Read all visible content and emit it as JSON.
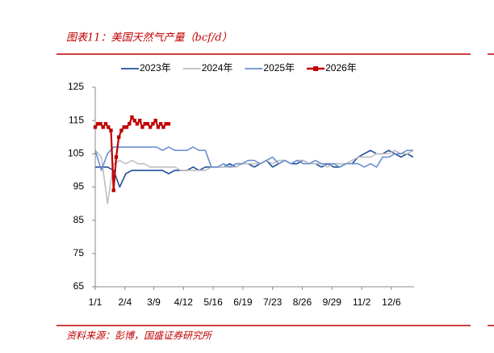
{
  "chart_data": {
    "type": "line",
    "title": "图表11：美国天然气产量（bcf/d）",
    "source": "资料来源：彭博，国盛证券研究所",
    "x": [
      0,
      7,
      14,
      21,
      28,
      35,
      42,
      49,
      56,
      63,
      70,
      77,
      84,
      91,
      98,
      105,
      112,
      119,
      126,
      133,
      140,
      147,
      154,
      161,
      168,
      175,
      182,
      189,
      196,
      203,
      210,
      217,
      224,
      231,
      238,
      245,
      252,
      259,
      266,
      273,
      280,
      287,
      294,
      301,
      308,
      315,
      322,
      329,
      336,
      343,
      350,
      357,
      364
    ],
    "xlim": [
      0,
      365
    ],
    "xticks": [
      {
        "value": 0,
        "label": "1/1"
      },
      {
        "value": 34,
        "label": "2/4"
      },
      {
        "value": 67,
        "label": "3/9"
      },
      {
        "value": 101,
        "label": "4/12"
      },
      {
        "value": 135,
        "label": "5/16"
      },
      {
        "value": 169,
        "label": "6/19"
      },
      {
        "value": 203,
        "label": "7/23"
      },
      {
        "value": 237,
        "label": "8/26"
      },
      {
        "value": 271,
        "label": "9/29"
      },
      {
        "value": 305,
        "label": "11/2"
      },
      {
        "value": 339,
        "label": "12/6"
      }
    ],
    "ylim": [
      65,
      125
    ],
    "yticks": [
      65,
      75,
      85,
      95,
      105,
      115,
      125
    ],
    "grid": false,
    "legend": "top",
    "series": [
      {
        "name": "2023年",
        "color": "#1f4e99",
        "values": [
          101,
          101,
          101,
          100,
          95,
          99,
          100,
          100,
          100,
          100,
          100,
          100,
          99,
          100,
          100,
          100,
          101,
          100,
          101,
          101,
          101,
          101,
          102,
          101,
          102,
          102,
          101,
          102,
          103,
          101,
          102,
          103,
          102,
          102,
          103,
          102,
          102,
          101,
          102,
          101,
          101,
          102,
          102,
          104,
          105,
          106,
          105,
          105,
          106,
          105,
          104,
          105,
          104
        ]
      },
      {
        "name": "2024年",
        "color": "#bfbfbf",
        "values": [
          106,
          104,
          90,
          102,
          103,
          102,
          103,
          102,
          102,
          101,
          101,
          101,
          101,
          101,
          100,
          100,
          100,
          100,
          100,
          101,
          101,
          101,
          101,
          101,
          102,
          102,
          102,
          102,
          103,
          102,
          103,
          103,
          102,
          103,
          103,
          102,
          102,
          102,
          101,
          102,
          102,
          102,
          103,
          104,
          104,
          104,
          105,
          105,
          105,
          106,
          105,
          105,
          106
        ]
      },
      {
        "name": "2025年",
        "color": "#6b8fd0",
        "values": [
          106,
          100,
          105,
          107,
          107,
          107,
          107,
          107,
          107,
          107,
          107,
          106,
          107,
          106,
          106,
          106,
          107,
          106,
          106,
          101,
          101,
          102,
          101,
          102,
          102,
          103,
          103,
          102,
          103,
          104,
          102,
          103,
          102,
          103,
          102,
          102,
          103,
          102,
          102,
          102,
          101,
          102,
          102,
          102,
          101,
          102,
          101,
          104,
          104,
          105,
          105,
          106,
          106
        ]
      },
      {
        "name": "2026年",
        "color": "#c00000",
        "marker": "square",
        "x": [
          0,
          3,
          6,
          9,
          12,
          15,
          18,
          21,
          24,
          27,
          30,
          33,
          36,
          39,
          42,
          45,
          48,
          51,
          54,
          57,
          60,
          63,
          66,
          69,
          72,
          75,
          78,
          81,
          84
        ],
        "values": [
          113,
          114,
          114,
          113,
          114,
          113,
          112,
          94,
          104,
          110,
          112,
          113,
          113,
          114,
          116,
          115,
          114,
          115,
          113,
          114,
          114,
          113,
          114,
          115,
          113,
          114,
          113,
          114,
          114
        ]
      }
    ]
  }
}
